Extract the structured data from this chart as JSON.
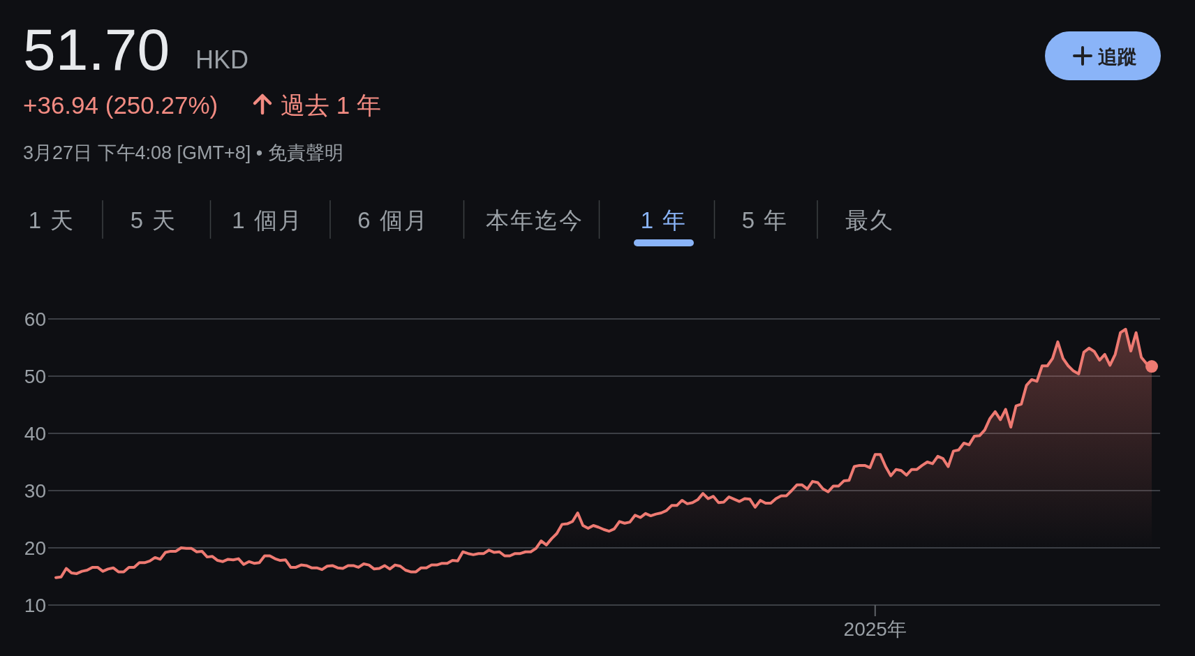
{
  "chart_data": {
    "type": "area",
    "title": "51.70",
    "subtitle": "HKD",
    "annotations": [
      "+36.94 (250.27%)",
      "過去 1 年",
      "3月27日 下午4:08 [GMT+8] • 免責聲明",
      "追蹤",
      "1 天",
      "5 天",
      "1 個月",
      "6 個月",
      "本年迄今",
      "1 年",
      "5 年",
      "最久"
    ],
    "categories": [
      null,
      null,
      null,
      null,
      null,
      null,
      null,
      null,
      null,
      null,
      null,
      null,
      null,
      null,
      null,
      null,
      null,
      null,
      null,
      null,
      null,
      null,
      null,
      null,
      null,
      null,
      null,
      null,
      null,
      null,
      null,
      null,
      null,
      null,
      null,
      null,
      null,
      null,
      null,
      null,
      null,
      null,
      null,
      null,
      null,
      null,
      null,
      null,
      null,
      null,
      null,
      null,
      null,
      null,
      null,
      null,
      null,
      null,
      null,
      null,
      null,
      null,
      null,
      null,
      null,
      null,
      null,
      null,
      null,
      null,
      null,
      null,
      null,
      null,
      null,
      null,
      null,
      null,
      null,
      null,
      null,
      null,
      null,
      null,
      null,
      null,
      null,
      null,
      null,
      null,
      null,
      null,
      null,
      null,
      null,
      null,
      null,
      null,
      null,
      null,
      null,
      null,
      null,
      null,
      null,
      null,
      null,
      null,
      null,
      null,
      null,
      null,
      null,
      null,
      null,
      null,
      null,
      null,
      null,
      null,
      null,
      null,
      null,
      null,
      null,
      null,
      null,
      null,
      null,
      null,
      null,
      null,
      null,
      null,
      null,
      null,
      null,
      null,
      null,
      null,
      null,
      null,
      null,
      null,
      null,
      null,
      null,
      null,
      null,
      null,
      null,
      null,
      null,
      null,
      null,
      null,
      null,
      "2025年",
      null,
      null,
      null,
      null,
      null,
      null,
      null,
      null,
      null,
      null,
      null,
      null,
      null,
      null,
      null,
      null,
      null,
      null,
      null,
      null,
      null,
      null,
      null,
      null,
      null,
      null,
      null,
      null,
      null,
      null,
      null,
      null,
      null,
      null,
      null,
      null,
      null,
      null,
      null,
      null,
      null,
      null,
      null,
      null,
      null,
      null,
      null,
      null,
      null,
      null,
      null,
      null,
      null
    ],
    "ylim": [
      10,
      60
    ],
    "yticks": [
      10,
      20,
      30,
      40,
      50,
      60
    ],
    "grid": "y",
    "series": [
      {
        "color": "#ee7a72",
        "values": [
          14.8,
          14.9,
          16.4,
          15.6,
          15.5,
          15.9,
          16.1,
          16.6,
          16.6,
          15.9,
          16.3,
          16.5,
          15.8,
          15.8,
          16.6,
          16.6,
          17.4,
          17.4,
          17.7,
          18.3,
          18.0,
          19.2,
          19.4,
          19.4,
          20.0,
          19.9,
          19.9,
          19.3,
          19.4,
          18.4,
          18.5,
          17.8,
          17.6,
          18.0,
          17.9,
          18.1,
          17.1,
          17.6,
          17.3,
          17.4,
          18.6,
          18.6,
          18.1,
          17.8,
          17.9,
          16.6,
          16.6,
          17.0,
          16.9,
          16.5,
          16.5,
          16.2,
          16.8,
          16.9,
          16.5,
          16.4,
          16.9,
          16.9,
          16.6,
          17.2,
          17.0,
          16.3,
          16.4,
          16.9,
          16.3,
          17.0,
          16.8,
          16.1,
          15.8,
          15.8,
          16.5,
          16.5,
          17.0,
          17.0,
          17.3,
          17.3,
          17.8,
          17.7,
          19.3,
          19.0,
          18.8,
          19.0,
          19.0,
          19.6,
          19.2,
          19.3,
          18.6,
          18.6,
          19.0,
          19.0,
          19.3,
          19.3,
          19.9,
          21.2,
          20.5,
          21.6,
          22.5,
          24.1,
          24.2,
          24.6,
          26.1,
          23.9,
          23.4,
          23.9,
          23.6,
          23.2,
          22.9,
          23.3,
          24.6,
          24.3,
          24.5,
          25.7,
          25.3,
          26.0,
          25.6,
          25.9,
          26.1,
          26.5,
          27.4,
          27.4,
          28.3,
          27.7,
          27.9,
          28.4,
          29.5,
          28.6,
          29.0,
          27.9,
          28.0,
          28.9,
          28.5,
          28.1,
          28.6,
          28.5,
          27.1,
          28.3,
          27.8,
          27.8,
          28.6,
          29.1,
          29.1,
          30.0,
          31.0,
          31.0,
          30.3,
          31.6,
          31.4,
          30.3,
          29.8,
          30.8,
          30.8,
          31.7,
          31.8,
          34.2,
          34.4,
          34.4,
          34.0,
          36.3,
          36.3,
          34.2,
          32.6,
          33.7,
          33.5,
          32.7,
          33.7,
          33.7,
          34.4,
          35.0,
          34.7,
          36.0,
          35.6,
          34.2,
          36.9,
          37.1,
          38.3,
          38.0,
          39.5,
          39.6,
          40.6,
          42.6,
          43.8,
          42.4,
          44.2,
          41.1,
          44.8,
          45.1,
          48.4,
          49.4,
          49.1,
          51.8,
          51.8,
          53.1,
          56.0,
          53.1,
          51.8,
          50.9,
          50.4,
          54.2,
          54.9,
          54.3,
          52.8,
          53.8,
          51.9,
          53.8,
          57.6,
          58.2,
          54.4,
          57.6,
          53.3,
          52.2,
          51.7
        ]
      }
    ]
  }
}
